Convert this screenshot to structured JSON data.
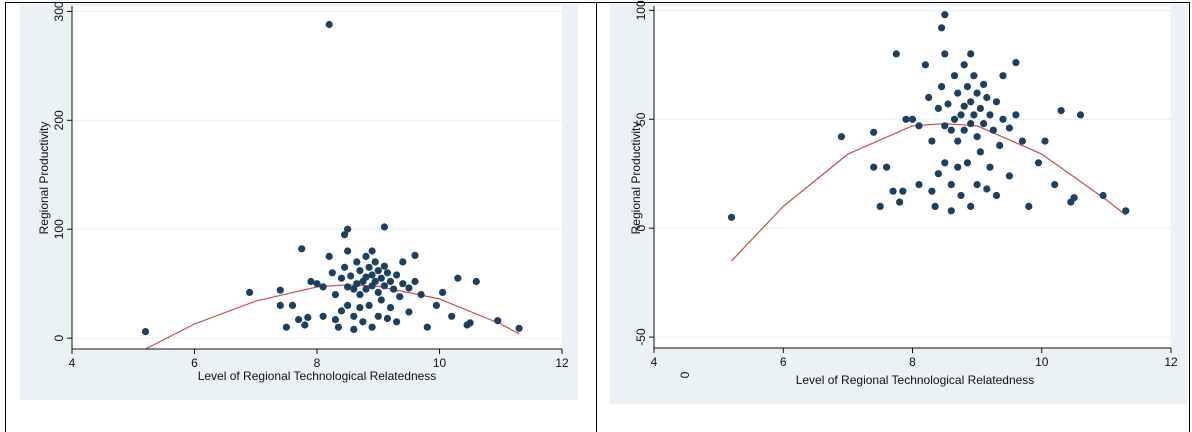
{
  "chart_data": [
    {
      "type": "scatter",
      "title": "",
      "xlabel": "Level of Regional Technological Relatedness",
      "ylabel": "Regional Productivity",
      "xlim": [
        4,
        12
      ],
      "ylim": [
        -10,
        305
      ],
      "x_ticks": [
        "4",
        "6",
        "8",
        "10",
        "12"
      ],
      "y_ticks": [
        "0",
        "100",
        "200",
        "300"
      ],
      "y_tick_values": [
        0,
        100,
        200,
        300
      ],
      "grid": true,
      "fit": {
        "type": "quadratic",
        "x_range": [
          5.2,
          11.3
        ],
        "points": [
          [
            5.2,
            -10
          ],
          [
            6,
            13
          ],
          [
            7,
            34
          ],
          [
            8,
            47
          ],
          [
            8.5,
            49
          ],
          [
            9,
            47.5
          ],
          [
            10,
            36
          ],
          [
            11,
            13
          ],
          [
            11.3,
            4
          ]
        ]
      },
      "fit_color": "#b85450",
      "marker_color": "#1f3f5f",
      "points": [
        [
          5.2,
          6
        ],
        [
          6.9,
          42
        ],
        [
          7.4,
          44
        ],
        [
          7.4,
          30
        ],
        [
          7.5,
          10
        ],
        [
          7.6,
          30
        ],
        [
          7.7,
          17
        ],
        [
          7.75,
          82
        ],
        [
          7.8,
          12
        ],
        [
          7.85,
          19
        ],
        [
          7.9,
          52
        ],
        [
          8.0,
          50
        ],
        [
          8.1,
          20
        ],
        [
          8.1,
          47
        ],
        [
          8.2,
          288
        ],
        [
          8.2,
          75
        ],
        [
          8.25,
          60
        ],
        [
          8.3,
          40
        ],
        [
          8.3,
          17
        ],
        [
          8.35,
          10
        ],
        [
          8.4,
          55
        ],
        [
          8.4,
          25
        ],
        [
          8.45,
          95
        ],
        [
          8.45,
          65
        ],
        [
          8.5,
          100
        ],
        [
          8.5,
          80
        ],
        [
          8.5,
          47
        ],
        [
          8.5,
          30
        ],
        [
          8.55,
          57
        ],
        [
          8.6,
          45
        ],
        [
          8.6,
          20
        ],
        [
          8.6,
          8
        ],
        [
          8.65,
          70
        ],
        [
          8.65,
          50
        ],
        [
          8.7,
          62
        ],
        [
          8.7,
          40
        ],
        [
          8.7,
          28
        ],
        [
          8.75,
          52
        ],
        [
          8.75,
          15
        ],
        [
          8.8,
          75
        ],
        [
          8.8,
          56
        ],
        [
          8.8,
          45
        ],
        [
          8.85,
          65
        ],
        [
          8.85,
          30
        ],
        [
          8.9,
          80
        ],
        [
          8.9,
          58
        ],
        [
          8.9,
          48
        ],
        [
          8.9,
          10
        ],
        [
          8.95,
          70
        ],
        [
          8.95,
          52
        ],
        [
          9.0,
          62
        ],
        [
          9.0,
          42
        ],
        [
          9.0,
          20
        ],
        [
          9.05,
          55
        ],
        [
          9.05,
          35
        ],
        [
          9.1,
          102
        ],
        [
          9.1,
          66
        ],
        [
          9.1,
          48
        ],
        [
          9.15,
          60
        ],
        [
          9.15,
          18
        ],
        [
          9.2,
          52
        ],
        [
          9.2,
          28
        ],
        [
          9.25,
          45
        ],
        [
          9.3,
          58
        ],
        [
          9.3,
          15
        ],
        [
          9.35,
          38
        ],
        [
          9.4,
          70
        ],
        [
          9.4,
          50
        ],
        [
          9.5,
          46
        ],
        [
          9.5,
          24
        ],
        [
          9.6,
          76
        ],
        [
          9.6,
          52
        ],
        [
          9.7,
          40
        ],
        [
          9.8,
          10
        ],
        [
          9.95,
          30
        ],
        [
          10.05,
          42
        ],
        [
          10.2,
          20
        ],
        [
          10.3,
          55
        ],
        [
          10.45,
          12
        ],
        [
          10.5,
          14
        ],
        [
          10.6,
          52
        ],
        [
          10.95,
          16
        ],
        [
          11.3,
          9
        ]
      ]
    },
    {
      "type": "scatter",
      "title": "",
      "xlabel": "Level of Regional Technological Relatedness",
      "ylabel": "Regional Productivity",
      "xlim": [
        4,
        12
      ],
      "ylim": [
        -55,
        102
      ],
      "x_ticks": [
        "4",
        "6",
        "8",
        "10",
        "12"
      ],
      "y_ticks": [
        "-50",
        "0",
        "50",
        "100"
      ],
      "y_tick_values": [
        -50,
        0,
        50,
        100
      ],
      "grid": true,
      "fit": {
        "type": "quadratic",
        "x_range": [
          5.2,
          11.3
        ],
        "points": [
          [
            5.2,
            -15
          ],
          [
            6,
            10
          ],
          [
            7,
            34
          ],
          [
            8,
            47
          ],
          [
            8.5,
            48
          ],
          [
            9,
            47
          ],
          [
            10,
            34
          ],
          [
            11,
            13
          ],
          [
            11.3,
            6
          ]
        ]
      },
      "fit_color": "#b85450",
      "marker_color": "#1f3f5f",
      "points": [
        [
          5.2,
          5
        ],
        [
          6.9,
          42
        ],
        [
          7.4,
          44
        ],
        [
          7.4,
          28
        ],
        [
          7.5,
          10
        ],
        [
          7.6,
          28
        ],
        [
          7.7,
          17
        ],
        [
          7.75,
          80
        ],
        [
          7.8,
          12
        ],
        [
          7.85,
          17
        ],
        [
          7.9,
          50
        ],
        [
          8.0,
          50
        ],
        [
          8.1,
          20
        ],
        [
          8.1,
          47
        ],
        [
          8.2,
          75
        ],
        [
          8.25,
          60
        ],
        [
          8.3,
          40
        ],
        [
          8.3,
          17
        ],
        [
          8.35,
          10
        ],
        [
          8.4,
          55
        ],
        [
          8.4,
          25
        ],
        [
          8.45,
          92
        ],
        [
          8.45,
          65
        ],
        [
          8.5,
          98
        ],
        [
          8.5,
          80
        ],
        [
          8.5,
          47
        ],
        [
          8.5,
          30
        ],
        [
          8.55,
          57
        ],
        [
          8.6,
          45
        ],
        [
          8.6,
          20
        ],
        [
          8.6,
          8
        ],
        [
          8.65,
          70
        ],
        [
          8.65,
          50
        ],
        [
          8.7,
          62
        ],
        [
          8.7,
          40
        ],
        [
          8.7,
          28
        ],
        [
          8.75,
          52
        ],
        [
          8.75,
          15
        ],
        [
          8.8,
          75
        ],
        [
          8.8,
          56
        ],
        [
          8.8,
          45
        ],
        [
          8.85,
          65
        ],
        [
          8.85,
          30
        ],
        [
          8.9,
          80
        ],
        [
          8.9,
          58
        ],
        [
          8.9,
          48
        ],
        [
          8.9,
          10
        ],
        [
          8.95,
          70
        ],
        [
          8.95,
          52
        ],
        [
          9.0,
          62
        ],
        [
          9.0,
          42
        ],
        [
          9.0,
          20
        ],
        [
          9.05,
          55
        ],
        [
          9.05,
          35
        ],
        [
          9.1,
          66
        ],
        [
          9.1,
          48
        ],
        [
          9.15,
          60
        ],
        [
          9.15,
          18
        ],
        [
          9.2,
          52
        ],
        [
          9.2,
          28
        ],
        [
          9.25,
          45
        ],
        [
          9.3,
          58
        ],
        [
          9.3,
          15
        ],
        [
          9.35,
          38
        ],
        [
          9.4,
          70
        ],
        [
          9.4,
          50
        ],
        [
          9.5,
          46
        ],
        [
          9.5,
          24
        ],
        [
          9.6,
          76
        ],
        [
          9.6,
          52
        ],
        [
          9.7,
          40
        ],
        [
          9.8,
          10
        ],
        [
          9.95,
          30
        ],
        [
          10.05,
          40
        ],
        [
          10.2,
          20
        ],
        [
          10.3,
          54
        ],
        [
          10.45,
          12
        ],
        [
          10.5,
          14
        ],
        [
          10.6,
          52
        ],
        [
          10.95,
          15
        ],
        [
          11.3,
          8
        ]
      ]
    }
  ],
  "stray_text": {
    "left_zero": "0"
  }
}
